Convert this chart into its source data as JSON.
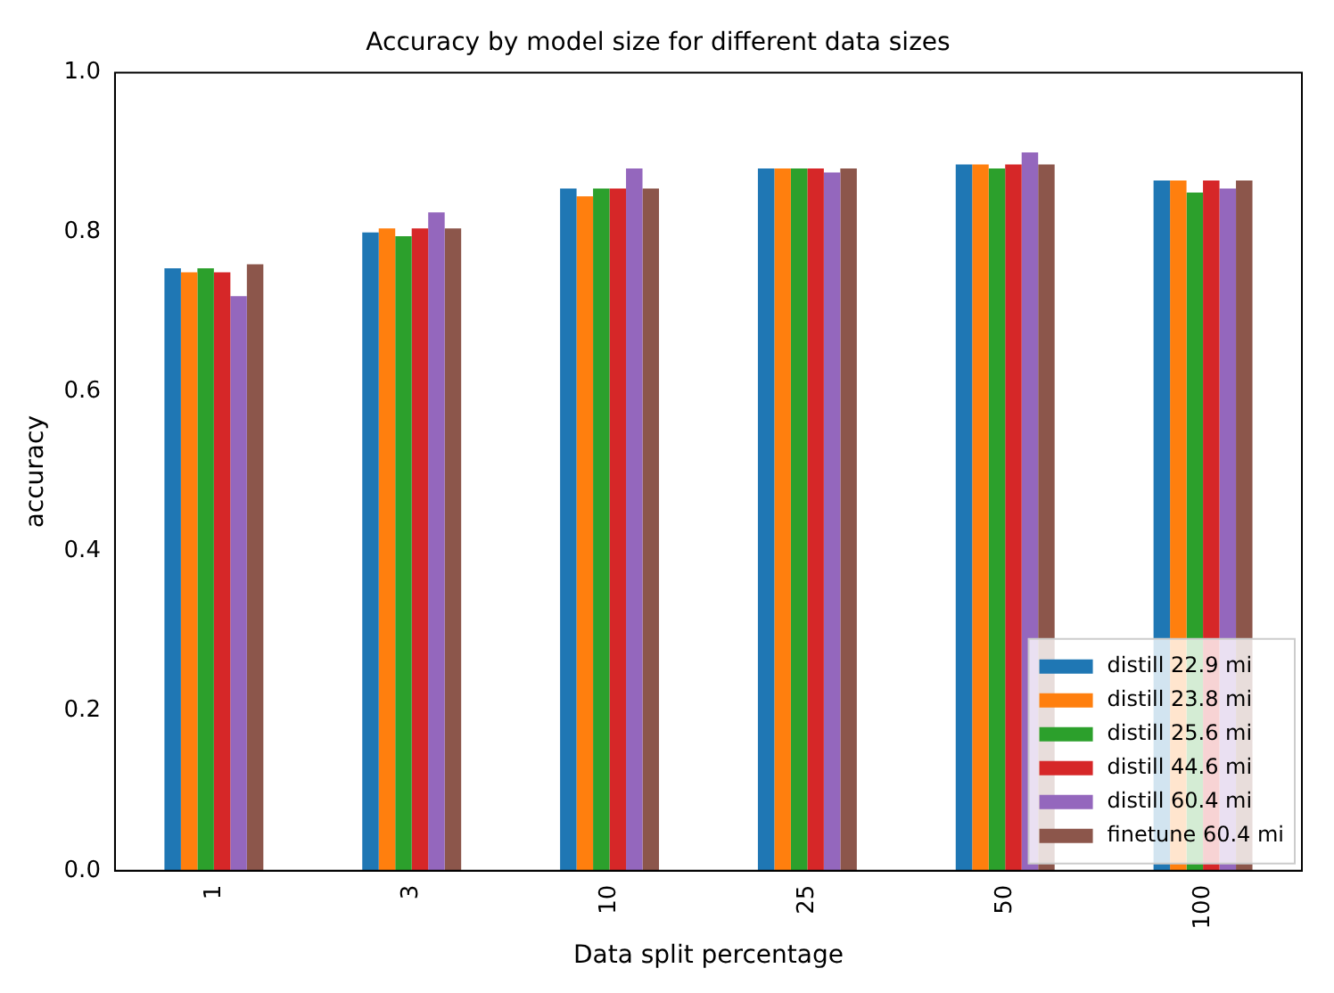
{
  "chart_data": {
    "type": "bar",
    "title": "Accuracy by model size for different data sizes",
    "xlabel": "Data split percentage",
    "ylabel": "accuracy",
    "categories": [
      "1",
      "3",
      "10",
      "25",
      "50",
      "100"
    ],
    "series": [
      {
        "name": "distill 22.9 mi",
        "color": "#1f77b4",
        "values": [
          0.755,
          0.8,
          0.855,
          0.88,
          0.885,
          0.865
        ]
      },
      {
        "name": "distill 23.8 mi",
        "color": "#ff7f0e",
        "values": [
          0.75,
          0.805,
          0.845,
          0.88,
          0.885,
          0.865
        ]
      },
      {
        "name": "distill 25.6 mi",
        "color": "#2ca02c",
        "values": [
          0.755,
          0.795,
          0.855,
          0.88,
          0.88,
          0.85
        ]
      },
      {
        "name": "distill 44.6 mi",
        "color": "#d62728",
        "values": [
          0.75,
          0.805,
          0.855,
          0.88,
          0.885,
          0.865
        ]
      },
      {
        "name": "distill 60.4 mi",
        "color": "#9467bd",
        "values": [
          0.72,
          0.825,
          0.88,
          0.875,
          0.9,
          0.855
        ]
      },
      {
        "name": "finetune 60.4 mi",
        "color": "#8c564b",
        "values": [
          0.76,
          0.805,
          0.855,
          0.88,
          0.885,
          0.865
        ]
      }
    ],
    "ylim": [
      0,
      1
    ],
    "yticks": [
      {
        "value": 0,
        "label": "0.0"
      },
      {
        "value": 0.2,
        "label": "0.2"
      },
      {
        "value": 0.4,
        "label": "0.4"
      },
      {
        "value": 0.6,
        "label": "0.6"
      },
      {
        "value": 0.8,
        "label": "0.8"
      },
      {
        "value": 1,
        "label": "1.0"
      }
    ],
    "grid": false,
    "legend": "bottom right"
  }
}
